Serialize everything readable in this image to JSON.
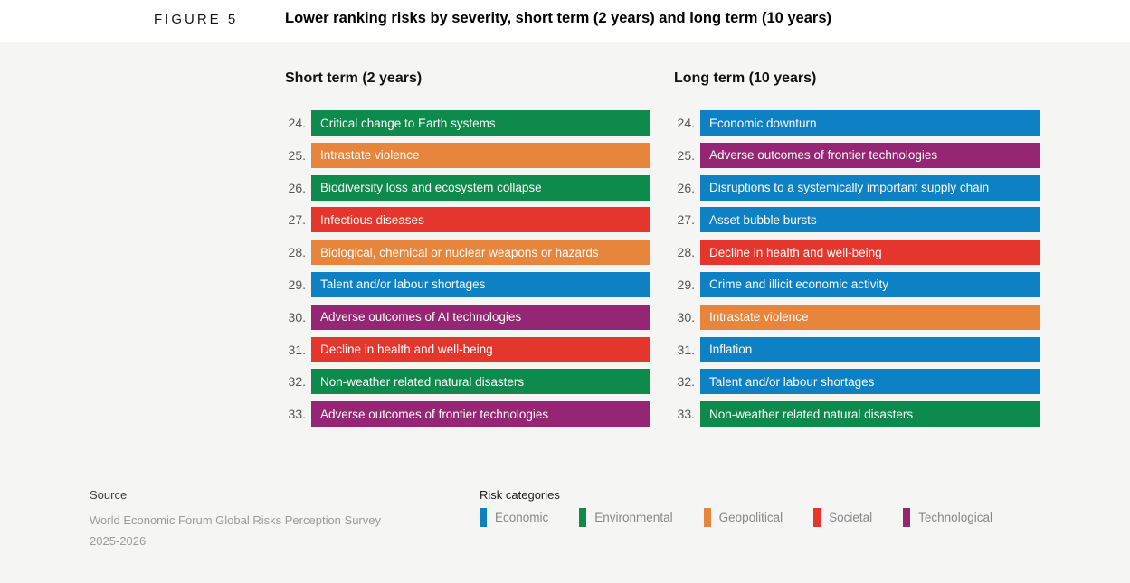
{
  "header": {
    "figure_label": "FIGURE 5",
    "title": "Lower ranking risks by severity, short term (2 years) and long term (10 years)"
  },
  "chart_data": {
    "type": "bar",
    "title": "Lower ranking risks by severity, short term (2 years) and long term (10 years)",
    "legend_position": "bottom",
    "groups": [
      {
        "title": "Short term (2 years)",
        "items": [
          {
            "rank": "24.",
            "label": "Critical change to Earth systems",
            "category": "Environmental"
          },
          {
            "rank": "25.",
            "label": "Intrastate violence",
            "category": "Geopolitical"
          },
          {
            "rank": "26.",
            "label": "Biodiversity loss and ecosystem collapse",
            "category": "Environmental"
          },
          {
            "rank": "27.",
            "label": "Infectious diseases",
            "category": "Societal"
          },
          {
            "rank": "28.",
            "label": "Biological, chemical or nuclear weapons or hazards",
            "category": "Geopolitical"
          },
          {
            "rank": "29.",
            "label": "Talent and/or labour shortages",
            "category": "Economic"
          },
          {
            "rank": "30.",
            "label": "Adverse outcomes of AI technologies",
            "category": "Technological"
          },
          {
            "rank": "31.",
            "label": "Decline in health and well-being",
            "category": "Societal"
          },
          {
            "rank": "32.",
            "label": "Non-weather related natural disasters",
            "category": "Environmental"
          },
          {
            "rank": "33.",
            "label": "Adverse outcomes of frontier technologies",
            "category": "Technological"
          }
        ]
      },
      {
        "title": "Long term (10 years)",
        "items": [
          {
            "rank": "24.",
            "label": "Economic downturn",
            "category": "Economic"
          },
          {
            "rank": "25.",
            "label": "Adverse outcomes of frontier technologies",
            "category": "Technological"
          },
          {
            "rank": "26.",
            "label": "Disruptions to a systemically important supply chain",
            "category": "Economic"
          },
          {
            "rank": "27.",
            "label": "Asset bubble bursts",
            "category": "Economic"
          },
          {
            "rank": "28.",
            "label": "Decline in health and well-being",
            "category": "Societal"
          },
          {
            "rank": "29.",
            "label": "Crime and illicit economic activity",
            "category": "Economic"
          },
          {
            "rank": "30.",
            "label": "Intrastate violence",
            "category": "Geopolitical"
          },
          {
            "rank": "31.",
            "label": "Inflation",
            "category": "Economic"
          },
          {
            "rank": "32.",
            "label": "Talent and/or labour shortages",
            "category": "Economic"
          },
          {
            "rank": "33.",
            "label": "Non-weather related natural disasters",
            "category": "Environmental"
          }
        ]
      }
    ]
  },
  "category_colors": {
    "Economic": "#0e81c5",
    "Environmental": "#0d8a4c",
    "Geopolitical": "#e8853c",
    "Societal": "#e5362e",
    "Technological": "#952673"
  },
  "legend": {
    "title": "Risk categories",
    "items": [
      {
        "label": "Economic"
      },
      {
        "label": "Environmental"
      },
      {
        "label": "Geopolitical"
      },
      {
        "label": "Societal"
      },
      {
        "label": "Technological"
      }
    ]
  },
  "source": {
    "label": "Source",
    "lines": [
      "World Economic Forum Global Risks Perception Survey",
      "2025-2026"
    ]
  }
}
